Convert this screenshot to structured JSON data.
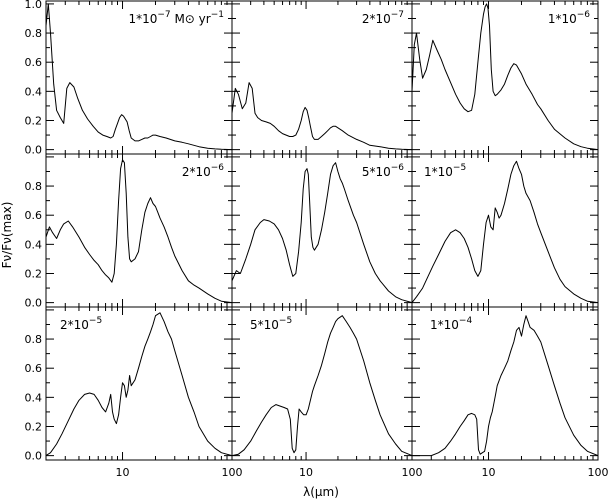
{
  "chart_data": {
    "type": "line",
    "layout": "3x3 grid of panels, shared axes",
    "xlabel": "λ(μm)",
    "ylabel": "Fν/Fν(max)",
    "xscale": "log",
    "xlim": [
      2,
      100
    ],
    "ylim": [
      -0.03,
      1.02
    ],
    "x_tick_labels": [
      "10",
      "100"
    ],
    "y_tick_labels": [
      "0.0",
      "0.2",
      "0.4",
      "0.6",
      "0.8",
      "1.0"
    ],
    "panels": [
      {
        "annotation_coef": "1*10",
        "annotation_exp": "−7",
        "annotation_unit": " M⊙ yr",
        "annotation_unit_exp": "−1",
        "x": [
          2.0,
          2.1,
          2.2,
          2.35,
          2.5,
          2.7,
          2.9,
          3.1,
          3.3,
          3.6,
          3.9,
          4.3,
          4.8,
          5.4,
          6.0,
          6.6,
          7.2,
          7.8,
          8.2,
          8.6,
          9.0,
          9.4,
          9.8,
          10.2,
          10.6,
          11.0,
          11.5,
          12.0,
          13,
          14,
          15,
          16,
          17,
          18,
          19,
          20,
          22,
          25,
          30,
          35,
          40,
          50,
          60,
          70,
          80,
          100
        ],
        "y": [
          0.85,
          1.0,
          0.8,
          0.45,
          0.27,
          0.22,
          0.18,
          0.42,
          0.46,
          0.43,
          0.35,
          0.27,
          0.21,
          0.16,
          0.12,
          0.1,
          0.09,
          0.08,
          0.09,
          0.14,
          0.18,
          0.22,
          0.24,
          0.23,
          0.21,
          0.19,
          0.13,
          0.08,
          0.06,
          0.06,
          0.07,
          0.08,
          0.08,
          0.09,
          0.1,
          0.1,
          0.09,
          0.08,
          0.06,
          0.05,
          0.04,
          0.02,
          0.01,
          0.005,
          0.002,
          0.0
        ]
      },
      {
        "annotation_coef": "2*10",
        "annotation_exp": "−7",
        "annotation_unit": "",
        "annotation_unit_exp": "",
        "x": [
          2.0,
          2.15,
          2.3,
          2.5,
          2.7,
          2.9,
          3.1,
          3.3,
          3.5,
          3.8,
          4.2,
          4.6,
          5.0,
          5.5,
          6.0,
          6.5,
          7.0,
          7.5,
          8.0,
          8.5,
          9.0,
          9.4,
          9.8,
          10.2,
          10.6,
          11.0,
          11.5,
          12.0,
          13,
          14,
          15,
          16,
          17,
          18,
          19,
          20,
          22,
          25,
          30,
          35,
          40,
          50,
          60,
          70,
          80,
          100
        ],
        "y": [
          0.25,
          0.42,
          0.38,
          0.28,
          0.32,
          0.46,
          0.42,
          0.25,
          0.22,
          0.2,
          0.19,
          0.18,
          0.16,
          0.13,
          0.11,
          0.1,
          0.09,
          0.09,
          0.1,
          0.14,
          0.2,
          0.26,
          0.29,
          0.27,
          0.22,
          0.16,
          0.09,
          0.07,
          0.07,
          0.09,
          0.11,
          0.13,
          0.15,
          0.16,
          0.16,
          0.15,
          0.13,
          0.1,
          0.07,
          0.05,
          0.03,
          0.02,
          0.01,
          0.005,
          0.002,
          0.0
        ]
      },
      {
        "annotation_coef": "1*10",
        "annotation_exp": "−6",
        "annotation_unit": "",
        "annotation_unit_exp": "",
        "x": [
          2.0,
          2.1,
          2.2,
          2.35,
          2.5,
          2.7,
          2.9,
          3.1,
          3.4,
          3.7,
          4.0,
          4.5,
          5.0,
          5.5,
          6.0,
          6.5,
          7.0,
          7.5,
          8.0,
          8.5,
          9.0,
          9.3,
          9.6,
          9.9,
          10.2,
          10.6,
          11.0,
          11.5,
          12.0,
          13,
          14,
          15,
          16,
          17,
          18,
          19,
          20,
          22,
          25,
          28,
          30,
          35,
          40,
          50,
          60,
          70,
          80,
          100
        ],
        "y": [
          0.4,
          0.72,
          0.8,
          0.62,
          0.49,
          0.55,
          0.65,
          0.75,
          0.68,
          0.62,
          0.55,
          0.46,
          0.38,
          0.32,
          0.28,
          0.26,
          0.27,
          0.38,
          0.6,
          0.8,
          0.93,
          0.98,
          1.0,
          0.97,
          0.85,
          0.55,
          0.4,
          0.37,
          0.38,
          0.41,
          0.45,
          0.51,
          0.56,
          0.59,
          0.58,
          0.55,
          0.52,
          0.45,
          0.38,
          0.31,
          0.28,
          0.2,
          0.14,
          0.08,
          0.04,
          0.02,
          0.01,
          0.0
        ]
      },
      {
        "annotation_coef": "2*10",
        "annotation_exp": "−6",
        "annotation_unit": "",
        "annotation_unit_exp": "",
        "x": [
          2.0,
          2.15,
          2.3,
          2.5,
          2.7,
          2.9,
          3.2,
          3.5,
          4.0,
          4.5,
          5.0,
          5.5,
          6.0,
          6.5,
          7.0,
          7.5,
          8.0,
          8.4,
          8.8,
          9.2,
          9.6,
          10.0,
          10.4,
          10.8,
          11.2,
          11.6,
          12.0,
          13,
          14,
          15,
          16,
          17,
          18,
          19,
          20,
          21,
          22,
          24,
          26,
          28,
          30,
          35,
          40,
          45,
          50,
          60,
          70,
          80,
          100
        ],
        "y": [
          0.45,
          0.52,
          0.48,
          0.44,
          0.5,
          0.54,
          0.56,
          0.52,
          0.45,
          0.38,
          0.33,
          0.29,
          0.26,
          0.22,
          0.19,
          0.17,
          0.14,
          0.2,
          0.4,
          0.7,
          0.92,
          0.98,
          0.96,
          0.75,
          0.45,
          0.3,
          0.28,
          0.3,
          0.35,
          0.5,
          0.62,
          0.68,
          0.72,
          0.68,
          0.66,
          0.62,
          0.58,
          0.52,
          0.45,
          0.38,
          0.32,
          0.22,
          0.15,
          0.12,
          0.1,
          0.06,
          0.03,
          0.01,
          0.0
        ]
      },
      {
        "annotation_coef": "5*10",
        "annotation_exp": "−6",
        "annotation_unit": "",
        "annotation_unit_exp": "",
        "x": [
          2.0,
          2.2,
          2.4,
          2.7,
          3.0,
          3.3,
          3.7,
          4.0,
          4.5,
          5.0,
          5.5,
          6.0,
          6.5,
          7.0,
          7.5,
          8.0,
          8.5,
          9.0,
          9.4,
          9.8,
          10.2,
          10.5,
          10.8,
          11.2,
          11.6,
          12.0,
          13,
          14,
          15,
          16,
          17,
          18,
          19,
          20,
          21,
          22,
          23,
          25,
          28,
          30,
          35,
          40,
          45,
          50,
          60,
          70,
          80,
          100
        ],
        "y": [
          0.15,
          0.22,
          0.2,
          0.3,
          0.4,
          0.5,
          0.55,
          0.57,
          0.56,
          0.54,
          0.5,
          0.44,
          0.36,
          0.26,
          0.18,
          0.2,
          0.35,
          0.55,
          0.78,
          0.9,
          0.92,
          0.88,
          0.7,
          0.45,
          0.38,
          0.36,
          0.4,
          0.5,
          0.62,
          0.75,
          0.88,
          0.94,
          0.96,
          0.9,
          0.85,
          0.82,
          0.78,
          0.7,
          0.6,
          0.55,
          0.4,
          0.28,
          0.2,
          0.15,
          0.08,
          0.04,
          0.02,
          0.0
        ]
      },
      {
        "annotation_coef": "1*10",
        "annotation_exp": "−5",
        "annotation_unit": "",
        "annotation_unit_exp": "",
        "x": [
          2.0,
          2.2,
          2.5,
          2.8,
          3.1,
          3.5,
          4.0,
          4.5,
          5.0,
          5.5,
          6.0,
          6.5,
          7.0,
          7.5,
          8.0,
          8.5,
          9.0,
          9.5,
          10.0,
          10.5,
          11.0,
          11.5,
          12.0,
          12.5,
          13,
          14,
          15,
          16,
          17,
          18,
          19,
          20,
          21,
          22,
          24,
          26,
          28,
          30,
          35,
          40,
          45,
          50,
          60,
          70,
          80,
          100
        ],
        "y": [
          0.0,
          0.04,
          0.1,
          0.18,
          0.25,
          0.33,
          0.42,
          0.48,
          0.5,
          0.48,
          0.44,
          0.38,
          0.3,
          0.22,
          0.18,
          0.22,
          0.4,
          0.55,
          0.6,
          0.52,
          0.5,
          0.65,
          0.62,
          0.58,
          0.6,
          0.68,
          0.78,
          0.88,
          0.94,
          0.97,
          0.92,
          0.88,
          0.8,
          0.75,
          0.7,
          0.62,
          0.54,
          0.48,
          0.35,
          0.24,
          0.16,
          0.11,
          0.06,
          0.03,
          0.01,
          0.0
        ]
      },
      {
        "annotation_coef": "2*10",
        "annotation_exp": "−5",
        "annotation_unit": "",
        "annotation_unit_exp": "",
        "x": [
          2.0,
          2.2,
          2.5,
          2.8,
          3.2,
          3.6,
          4.0,
          4.5,
          5.0,
          5.5,
          6.0,
          6.5,
          7.0,
          7.5,
          7.8,
          8.1,
          8.4,
          8.8,
          9.2,
          9.6,
          10.0,
          10.4,
          10.8,
          11.2,
          11.6,
          12.0,
          13,
          14,
          15,
          16,
          17,
          18,
          19,
          20,
          22,
          24,
          26,
          28,
          30,
          35,
          40,
          45,
          50,
          60,
          70,
          80,
          100
        ],
        "y": [
          0.0,
          0.02,
          0.08,
          0.15,
          0.24,
          0.32,
          0.38,
          0.42,
          0.43,
          0.42,
          0.38,
          0.33,
          0.3,
          0.36,
          0.42,
          0.3,
          0.25,
          0.22,
          0.28,
          0.4,
          0.5,
          0.48,
          0.4,
          0.45,
          0.55,
          0.48,
          0.52,
          0.6,
          0.68,
          0.75,
          0.8,
          0.85,
          0.9,
          0.96,
          0.98,
          0.92,
          0.85,
          0.8,
          0.72,
          0.55,
          0.4,
          0.3,
          0.2,
          0.1,
          0.05,
          0.02,
          0.0
        ]
      },
      {
        "annotation_coef": "5*10",
        "annotation_exp": "−5",
        "annotation_unit": "",
        "annotation_unit_exp": "",
        "x": [
          2.0,
          2.3,
          2.6,
          3.0,
          3.4,
          3.8,
          4.2,
          4.7,
          5.2,
          5.7,
          6.2,
          6.7,
          7.1,
          7.4,
          7.7,
          8.0,
          8.3,
          8.6,
          9.0,
          9.5,
          10.0,
          10.5,
          11.0,
          11.5,
          12.0,
          13,
          14,
          15,
          16,
          17,
          18,
          19,
          20,
          22,
          24,
          26,
          28,
          30,
          35,
          40,
          45,
          50,
          60,
          70,
          80,
          100
        ],
        "y": [
          0.0,
          0.01,
          0.04,
          0.1,
          0.17,
          0.23,
          0.28,
          0.33,
          0.35,
          0.34,
          0.33,
          0.32,
          0.25,
          0.05,
          0.02,
          0.04,
          0.2,
          0.32,
          0.3,
          0.28,
          0.28,
          0.32,
          0.38,
          0.44,
          0.48,
          0.55,
          0.62,
          0.7,
          0.78,
          0.84,
          0.88,
          0.92,
          0.94,
          0.96,
          0.92,
          0.88,
          0.84,
          0.8,
          0.65,
          0.5,
          0.38,
          0.28,
          0.15,
          0.08,
          0.03,
          0.0
        ]
      },
      {
        "annotation_coef": "1*10",
        "annotation_exp": "−4",
        "annotation_unit": "",
        "annotation_unit_exp": "",
        "x": [
          2.0,
          2.5,
          3.0,
          3.5,
          4.0,
          4.5,
          5.0,
          5.5,
          6.0,
          6.5,
          7.0,
          7.5,
          7.8,
          8.1,
          8.4,
          8.8,
          9.2,
          9.6,
          10.0,
          10.4,
          10.8,
          11.2,
          11.6,
          12.0,
          13,
          14,
          15,
          16,
          17,
          18,
          19,
          20,
          21,
          22,
          23,
          24,
          26,
          28,
          30,
          35,
          40,
          45,
          50,
          60,
          70,
          80,
          100
        ],
        "y": [
          0.0,
          0.0,
          0.0,
          0.02,
          0.05,
          0.1,
          0.15,
          0.2,
          0.24,
          0.28,
          0.29,
          0.28,
          0.25,
          0.04,
          0.01,
          0.02,
          0.03,
          0.1,
          0.2,
          0.26,
          0.3,
          0.36,
          0.42,
          0.48,
          0.55,
          0.6,
          0.65,
          0.72,
          0.78,
          0.86,
          0.88,
          0.82,
          0.9,
          0.96,
          0.92,
          0.88,
          0.86,
          0.82,
          0.78,
          0.62,
          0.48,
          0.36,
          0.26,
          0.14,
          0.07,
          0.03,
          0.0
        ]
      }
    ]
  }
}
